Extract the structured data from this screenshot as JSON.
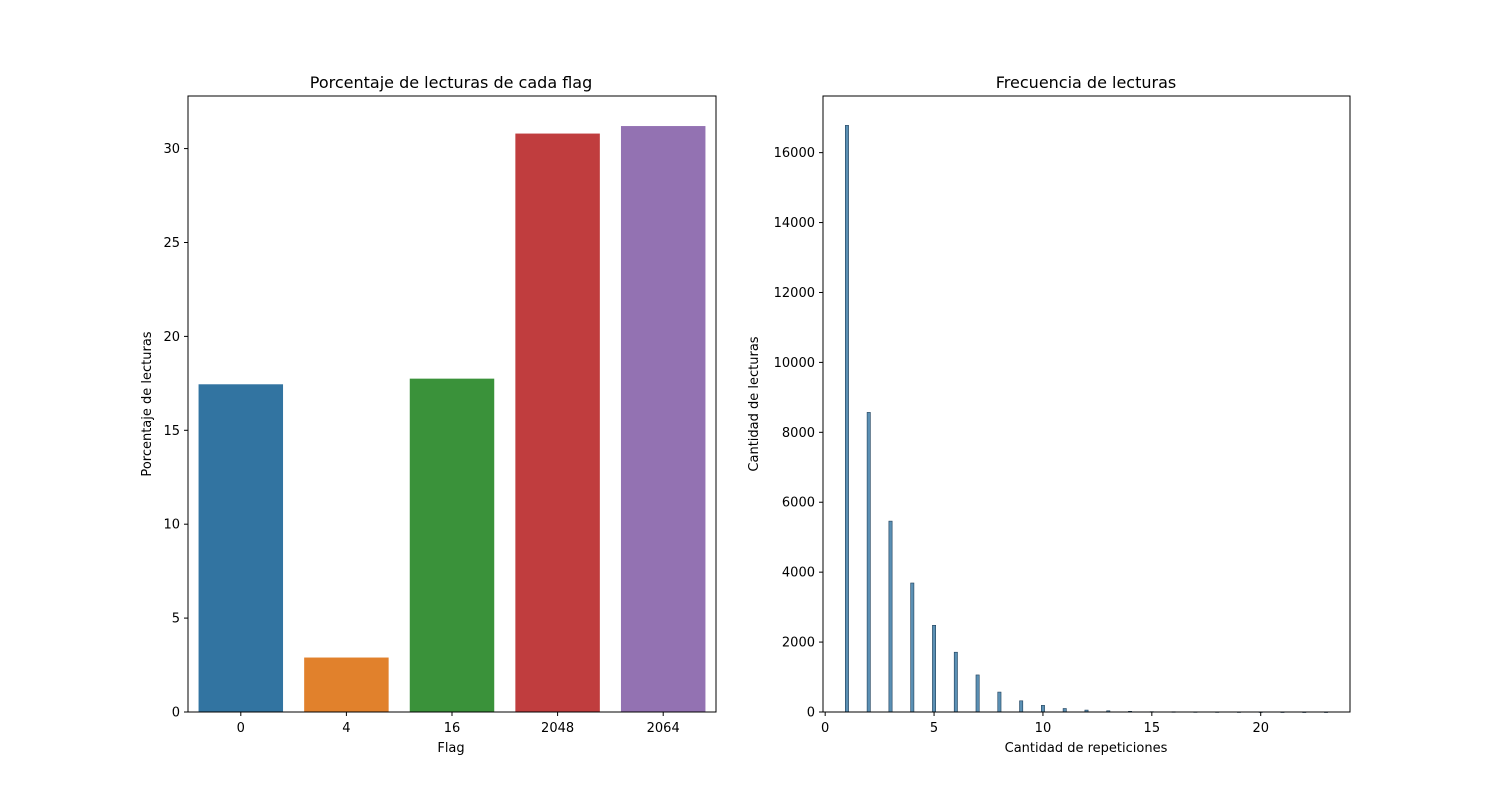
{
  "chart_data": [
    {
      "type": "bar",
      "title": "Porcentaje de lecturas de cada flag",
      "xlabel": "Flag",
      "ylabel": "Porcentaje de lecturas",
      "categories": [
        "0",
        "4",
        "16",
        "2048",
        "2064"
      ],
      "values": [
        17.45,
        2.9,
        17.75,
        30.8,
        31.2
      ],
      "colors": [
        "#3274a1",
        "#e1812c",
        "#3a923a",
        "#c03d3e",
        "#9372b2"
      ],
      "ylim": [
        0,
        32.8
      ],
      "yticks": [
        0,
        5,
        10,
        15,
        20,
        25,
        30
      ],
      "grid": false
    },
    {
      "type": "bar",
      "subtype": "histogram",
      "title": "Frecuencia de lecturas",
      "xlabel": "Cantidad de repeticiones",
      "ylabel": "Cantidad de lecturas",
      "x": [
        1,
        2,
        3,
        4,
        5,
        6,
        7,
        8,
        9,
        10,
        11,
        12,
        13,
        14,
        15,
        16,
        17,
        18,
        19,
        20,
        21,
        22,
        23
      ],
      "values": [
        16780,
        8570,
        5460,
        3690,
        2480,
        1710,
        1060,
        570,
        320,
        190,
        100,
        55,
        35,
        20,
        10,
        8,
        6,
        5,
        4,
        3,
        3,
        2,
        2
      ],
      "bar_width": 0.15,
      "color": "#3274a1",
      "xlim": [
        -0.1,
        24.1
      ],
      "ylim": [
        0,
        17620
      ],
      "xticks": [
        0,
        5,
        10,
        15,
        20
      ],
      "yticks": [
        0,
        2000,
        4000,
        6000,
        8000,
        10000,
        12000,
        14000,
        16000
      ],
      "grid": false
    }
  ]
}
